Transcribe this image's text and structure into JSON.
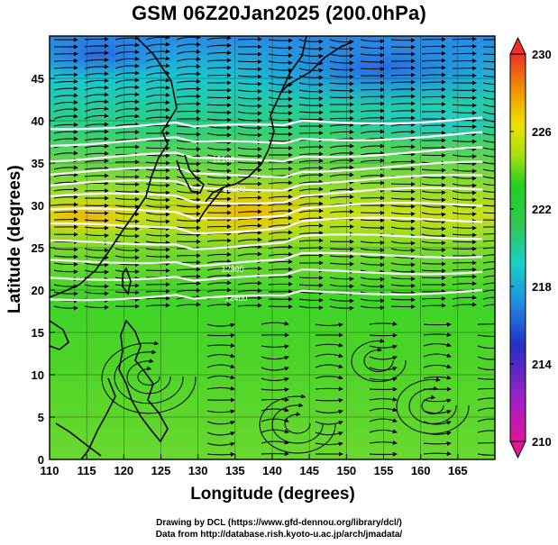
{
  "title": "GSM 06Z20Jan2025 (200.0hPa)",
  "xaxis": {
    "label": "Longitude (degrees)",
    "range": [
      110,
      170
    ],
    "ticks": [
      "110",
      "115",
      "120",
      "125",
      "130",
      "135",
      "140",
      "145",
      "150",
      "155",
      "160",
      "165"
    ]
  },
  "yaxis": {
    "label": "Latitude  (degrees)",
    "range": [
      0,
      50
    ],
    "ticks": [
      "0",
      "5",
      "10",
      "15",
      "20",
      "25",
      "30",
      "35",
      "40",
      "45"
    ]
  },
  "colorbar": {
    "labels": [
      "210",
      "214",
      "218",
      "222",
      "226",
      "230"
    ],
    "range": [
      210,
      230
    ],
    "colors": [
      "#e0159a",
      "#9a20c8",
      "#2030c8",
      "#2090e0",
      "#18d0c8",
      "#30c850",
      "#20d020",
      "#a8e010",
      "#f0e000",
      "#f09000",
      "#f03020"
    ]
  },
  "contour_labels": [
    "12100",
    "12200",
    "12300",
    "12400"
  ],
  "credits": {
    "line1": "Drawing by DCL (https://www.gfd-dennou.org/library/dcl/)",
    "line2": "Data from http://database.rish.kyoto-u.ac.jp/arch/jmadata/"
  },
  "map": {
    "projection": "equirectangular",
    "grid": true,
    "field": "temperature (K) shaded, geopotential height contours (white), streamlines",
    "coastline_color": "#000000",
    "contour_color": "#ffffff"
  }
}
